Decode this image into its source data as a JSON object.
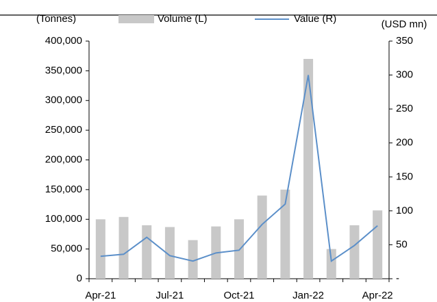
{
  "chart_data": {
    "type": "bar_line",
    "y_label": "(Tonnes)",
    "y2_label": "(USD mn)",
    "categories": [
      "Apr-21",
      null,
      null,
      "Jul-21",
      null,
      null,
      "Oct-21",
      null,
      null,
      "Jan-22",
      null,
      null,
      "Apr-22"
    ],
    "series": [
      {
        "name": "Volume (L)",
        "color": "#c8c8c8",
        "type": "bar",
        "values": [
          100000,
          104000,
          90000,
          87000,
          65000,
          88000,
          100000,
          140000,
          150000,
          370000,
          50000,
          90000,
          115000
        ]
      },
      {
        "name": "Value (R)",
        "color": "#5b8fc9",
        "type": "line",
        "axis": "y2",
        "values": [
          33,
          36,
          61,
          34,
          26,
          38,
          42,
          80,
          110,
          300,
          26,
          49,
          78
        ]
      }
    ],
    "ylim": [
      0,
      400000
    ],
    "yticks": [
      0,
      {
        "value": 50000,
        "label": "50,000"
      },
      {
        "value": 100000,
        "label": "100,000"
      },
      {
        "value": 150000,
        "label": "150,000"
      },
      {
        "value": 200000,
        "label": "200,000"
      },
      {
        "value": 250000,
        "label": "250,000"
      },
      {
        "value": 300000,
        "label": "300,000"
      },
      {
        "value": 350000,
        "label": "350,000"
      },
      {
        "value": 400000,
        "label": "400,000"
      }
    ],
    "y2lim": [
      0,
      350
    ],
    "y2ticks": [
      {
        "value": 0,
        "label": "-"
      },
      50,
      100,
      150,
      200,
      250,
      300,
      350
    ],
    "grid": false
  }
}
